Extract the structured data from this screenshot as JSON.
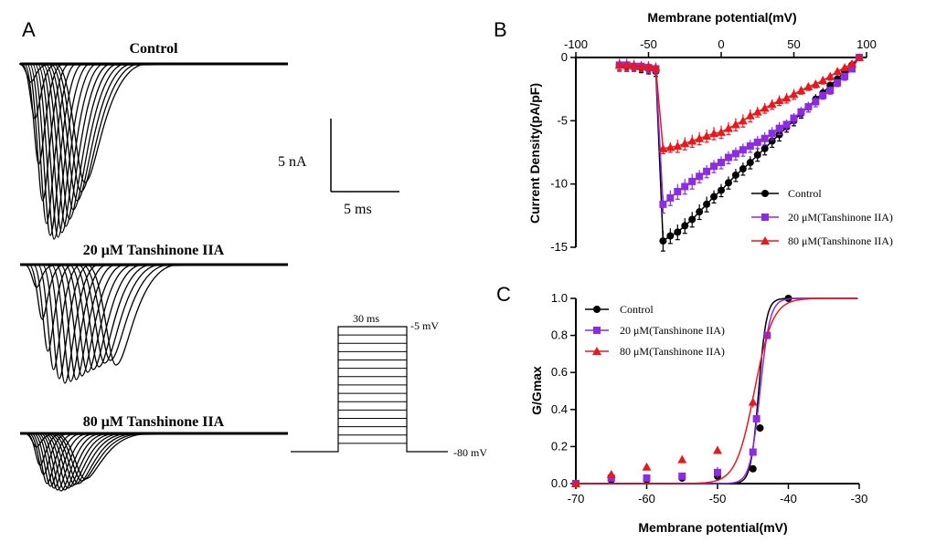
{
  "panels": {
    "A": {
      "letter": "A",
      "traces": [
        {
          "title": "Control"
        },
        {
          "title": "20 μM Tanshinone IIA"
        },
        {
          "title": "80 μM  Tanshinone IIA"
        }
      ],
      "scale_bar": {
        "y_label": "5 nA",
        "x_label": "5 ms"
      },
      "protocol": {
        "duration": "30 ms",
        "top": "-5 mV",
        "bottom": "-80 mV"
      }
    },
    "B": {
      "letter": "B"
    },
    "C": {
      "letter": "C"
    }
  },
  "colors": {
    "control": "#000000",
    "t20": "#8B2BE2",
    "t80": "#E8191E"
  },
  "chart_data": [
    {
      "type": "line",
      "panel": "B",
      "xlabel": "Membrane potential(mV)",
      "ylabel": "Current Density(pA/pF)",
      "xlim": [
        -100,
        100
      ],
      "ylim": [
        -15,
        0
      ],
      "x_ticks": [
        "-100",
        "-50",
        "0",
        "50",
        "100"
      ],
      "y_ticks": [
        "0",
        "-5",
        "-10",
        "-15"
      ],
      "x_axis_position": "top",
      "legend_position": "lower-right",
      "series": [
        {
          "name": "Control",
          "marker": "circle",
          "color": "#000000",
          "x": [
            -70,
            -65,
            -60,
            -55,
            -50,
            -45,
            -40,
            -35,
            -30,
            -25,
            -20,
            -15,
            -10,
            -5,
            0,
            5,
            10,
            15,
            20,
            25,
            30,
            35,
            40,
            45,
            50,
            55,
            60,
            65,
            70,
            75,
            80,
            85,
            90,
            95
          ],
          "y": [
            -0.6,
            -0.7,
            -0.7,
            -0.8,
            -0.9,
            -1.1,
            -14.5,
            -14.1,
            -13.8,
            -13.3,
            -12.8,
            -12.2,
            -11.6,
            -11.0,
            -10.5,
            -9.9,
            -9.3,
            -8.8,
            -8.3,
            -7.7,
            -7.2,
            -6.6,
            -6.1,
            -5.5,
            -5.0,
            -4.4,
            -3.9,
            -3.3,
            -2.8,
            -2.2,
            -1.7,
            -1.1,
            -0.6,
            0.0
          ],
          "err": [
            0.4,
            0.4,
            0.4,
            0.4,
            0.4,
            0.4,
            0.8,
            0.6,
            0.6,
            0.6,
            0.6,
            0.6,
            0.6,
            0.5,
            0.5,
            0.5,
            0.5,
            0.5,
            0.5,
            0.5,
            0.5,
            0.5,
            0.5,
            0.4,
            0.4,
            0.4,
            0.4,
            0.4,
            0.4,
            0.3,
            0.3,
            0.3,
            0.3,
            0.2
          ]
        },
        {
          "name": "20 μM(Tanshinone IIA)",
          "marker": "square",
          "color": "#8B2BE2",
          "x": [
            -70,
            -65,
            -60,
            -55,
            -50,
            -45,
            -40,
            -35,
            -30,
            -25,
            -20,
            -15,
            -10,
            -5,
            0,
            5,
            10,
            15,
            20,
            25,
            30,
            35,
            40,
            45,
            50,
            55,
            60,
            65,
            70,
            75,
            80,
            85,
            90,
            95
          ],
          "y": [
            -0.6,
            -0.6,
            -0.7,
            -0.7,
            -0.8,
            -0.9,
            -11.6,
            -11.1,
            -10.6,
            -10.2,
            -9.8,
            -9.4,
            -9.0,
            -8.6,
            -8.3,
            -7.9,
            -7.6,
            -7.3,
            -7.0,
            -6.7,
            -6.4,
            -6.0,
            -5.6,
            -5.3,
            -4.8,
            -4.3,
            -3.9,
            -3.5,
            -3.0,
            -2.6,
            -2.0,
            -1.5,
            -0.9,
            0.0
          ],
          "err": [
            0.5,
            0.5,
            0.4,
            0.4,
            0.4,
            0.4,
            0.7,
            0.6,
            0.6,
            0.6,
            0.6,
            0.5,
            0.5,
            0.5,
            0.5,
            0.5,
            0.5,
            0.5,
            0.5,
            0.5,
            0.5,
            0.5,
            0.5,
            0.4,
            0.4,
            0.4,
            0.4,
            0.4,
            0.3,
            0.3,
            0.3,
            0.3,
            0.2,
            0.2
          ]
        },
        {
          "name": "80 μM(Tanshinone IIA)",
          "marker": "triangle",
          "color": "#E8191E",
          "x": [
            -70,
            -65,
            -60,
            -55,
            -50,
            -45,
            -40,
            -35,
            -30,
            -25,
            -20,
            -15,
            -10,
            -5,
            0,
            5,
            10,
            15,
            20,
            25,
            30,
            35,
            40,
            45,
            50,
            55,
            60,
            65,
            70,
            75,
            80,
            85,
            90,
            95
          ],
          "y": [
            -0.6,
            -0.6,
            -0.6,
            -0.7,
            -0.7,
            -0.8,
            -7.2,
            -7.1,
            -7.0,
            -6.8,
            -6.6,
            -6.4,
            -6.2,
            -6.0,
            -5.9,
            -5.6,
            -5.3,
            -5.0,
            -4.6,
            -4.3,
            -4.0,
            -3.7,
            -3.4,
            -3.2,
            -2.9,
            -2.6,
            -2.3,
            -2.1,
            -1.8,
            -1.5,
            -1.1,
            -0.8,
            -0.5,
            0.0
          ],
          "err": [
            0.4,
            0.4,
            0.4,
            0.4,
            0.4,
            0.4,
            0.4,
            0.4,
            0.5,
            0.5,
            0.5,
            0.5,
            0.5,
            0.5,
            0.5,
            0.5,
            0.5,
            0.5,
            0.5,
            0.4,
            0.4,
            0.4,
            0.4,
            0.4,
            0.4,
            0.3,
            0.3,
            0.3,
            0.3,
            0.3,
            0.2,
            0.2,
            0.2,
            0.1
          ]
        }
      ]
    },
    {
      "type": "line",
      "panel": "C",
      "xlabel": "Membrane potential(mV)",
      "ylabel": "G/Gmax",
      "xlim": [
        -70,
        -30
      ],
      "ylim": [
        0,
        1.0
      ],
      "x_ticks": [
        "-70",
        "-60",
        "-50",
        "-40",
        "-30"
      ],
      "y_ticks": [
        "0.0",
        "0.2",
        "0.4",
        "0.6",
        "0.8",
        "1.0"
      ],
      "legend_position": "top-left",
      "series": [
        {
          "name": "Control",
          "marker": "circle",
          "color": "#000000",
          "x": [
            -70,
            -65,
            -60,
            -55,
            -50,
            -45,
            -44,
            -43,
            -40
          ],
          "y": [
            0.0,
            0.02,
            0.02,
            0.03,
            0.04,
            0.08,
            0.3,
            0.8,
            1.0
          ],
          "err": [
            0,
            0.01,
            0.02,
            0.02,
            0.02,
            0.01,
            0.02,
            0.02,
            0
          ],
          "fit": {
            "v_half": -44.2,
            "slope": 0.55
          }
        },
        {
          "name": "20 μM(Tanshinone IIA)",
          "marker": "square",
          "color": "#8B2BE2",
          "x": [
            -70,
            -65,
            -60,
            -55,
            -50,
            -45,
            -44.5,
            -43
          ],
          "y": [
            0.0,
            0.03,
            0.03,
            0.04,
            0.06,
            0.17,
            0.35,
            0.8
          ],
          "err": [
            0,
            0.01,
            0.02,
            0.02,
            0.03,
            0.02,
            0.02,
            0.02
          ],
          "fit": {
            "v_half": -44.0,
            "slope": 0.7
          }
        },
        {
          "name": "80 μM(Tanshinone IIA)",
          "marker": "triangle",
          "color": "#E8191E",
          "x": [
            -70,
            -65,
            -60,
            -55,
            -50,
            -45
          ],
          "y": [
            0.0,
            0.05,
            0.09,
            0.13,
            0.18,
            0.44
          ],
          "err": [
            0,
            0.01,
            0.01,
            0.01,
            0.02,
            0.03
          ],
          "fit": {
            "v_half": -44.8,
            "slope": 1.3
          }
        }
      ]
    }
  ]
}
